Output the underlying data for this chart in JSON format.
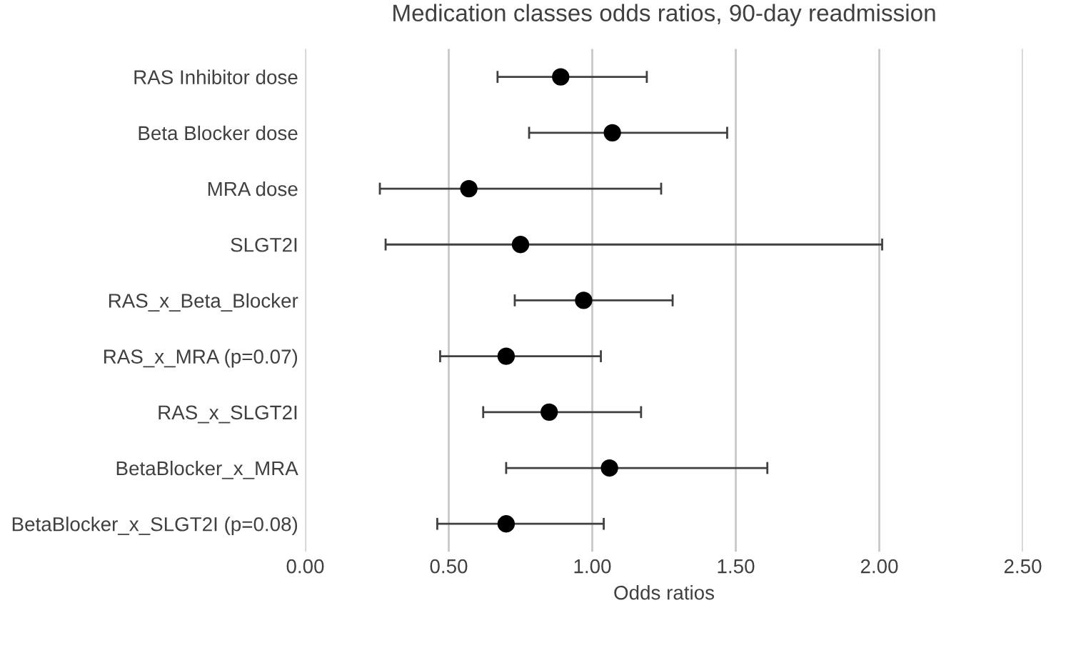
{
  "chart_data": {
    "type": "scatter",
    "orientation": "horizontal",
    "title": "Medication classes odds ratios, 90-day readmission",
    "xlabel": "Odds ratios",
    "categories": [
      "RAS Inhibitor dose",
      "Beta Blocker dose",
      "MRA dose",
      "SLGT2I",
      "RAS_x_Beta_Blocker",
      "RAS_x_MRA (p=0.07)",
      "RAS_x_SLGT2I",
      "BetaBlocker_x_MRA",
      "BetaBlocker_x_SLGT2I (p=0.08)"
    ],
    "values": [
      0.89,
      1.07,
      0.57,
      0.75,
      0.97,
      0.7,
      0.85,
      1.06,
      0.7
    ],
    "errors": [
      [
        0.67,
        1.19
      ],
      [
        0.78,
        1.47
      ],
      [
        0.26,
        1.24
      ],
      [
        0.28,
        2.01
      ],
      [
        0.73,
        1.28
      ],
      [
        0.47,
        1.03
      ],
      [
        0.62,
        1.17
      ],
      [
        0.7,
        1.61
      ],
      [
        0.46,
        1.04
      ]
    ],
    "color": "#000000",
    "marker": "circle",
    "xlim": [
      0,
      2.5
    ],
    "xticks": [
      {
        "value": 0,
        "label": "0.00"
      },
      {
        "value": 0.5,
        "label": "0.50"
      },
      {
        "value": 1,
        "label": "1.00"
      },
      {
        "value": 1.5,
        "label": "1.50"
      },
      {
        "value": 2,
        "label": "2.00"
      },
      {
        "value": 2.5,
        "label": "2.50"
      }
    ],
    "grid": "x"
  }
}
